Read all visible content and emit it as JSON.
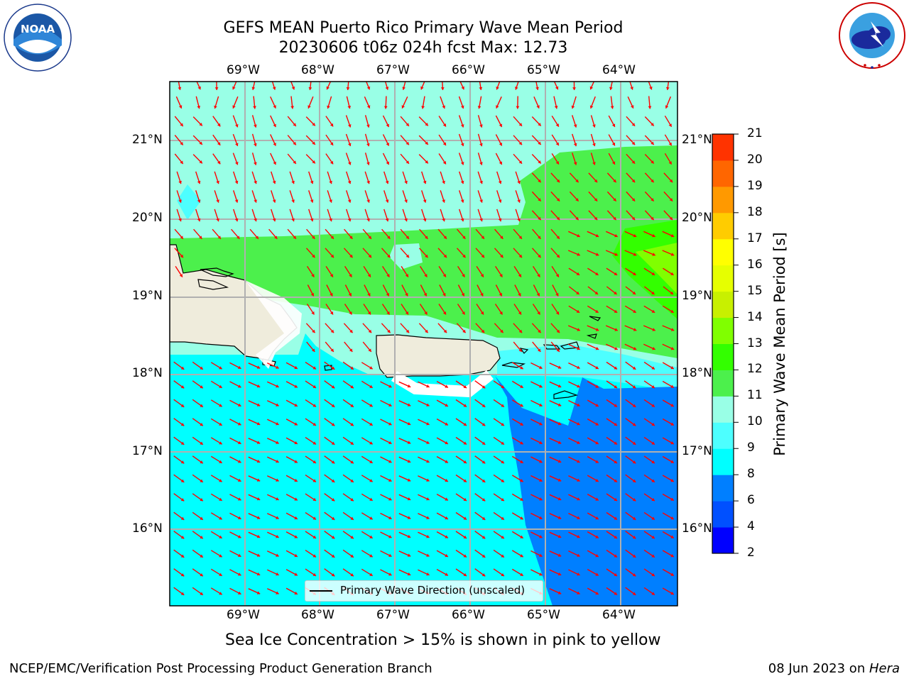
{
  "title": {
    "line1": "GEFS MEAN Puerto Rico Primary Wave Mean Period",
    "line2": "20230606 t06z 024h fcst   Max: 12.73"
  },
  "logos": {
    "left": "NOAA",
    "right": "NATIONAL WEATHER SERVICE"
  },
  "axes": {
    "lon_labels": [
      "69°W",
      "68°W",
      "67°W",
      "66°W",
      "65°W",
      "64°W"
    ],
    "lat_labels": [
      "21°N",
      "20°N",
      "19°N",
      "18°N",
      "17°N",
      "16°N"
    ]
  },
  "legend": {
    "label": "Primary Wave Direction (unscaled)"
  },
  "colorbar": {
    "label": "Primary Wave Mean Period [s]",
    "ticks": [
      "2",
      "4",
      "6",
      "8",
      "9",
      "10",
      "11",
      "12",
      "13",
      "14",
      "15",
      "16",
      "17",
      "18",
      "19",
      "20",
      "21"
    ],
    "colors": [
      "#0000ff",
      "#0050ff",
      "#007fff",
      "#00ffff",
      "#4dffff",
      "#99ffe6",
      "#4cf04c",
      "#33ff00",
      "#80ff00",
      "#c8f000",
      "#e6ff00",
      "#ffff00",
      "#ffcc00",
      "#ff9900",
      "#ff6600",
      "#ff3300",
      "#ff0000"
    ]
  },
  "note": "Sea Ice Concentration > 15% is shown in pink to yellow",
  "footer": {
    "left": "NCEP/EMC/Verification Post Processing Product Generation Branch",
    "right_date": "08 Jun 2023 on ",
    "right_host": "Hera"
  },
  "map_colors": {
    "land": "#efecdc",
    "arrow": "#ff0000",
    "grid": "#b0b0b0"
  }
}
